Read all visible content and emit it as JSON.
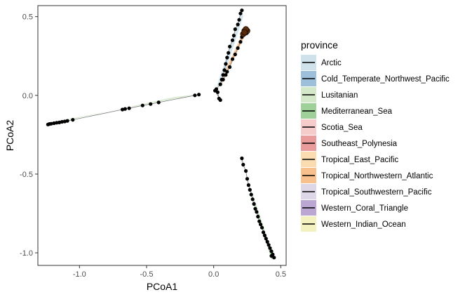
{
  "chart_data": {
    "type": "scatter",
    "xlabel": "PCoA1",
    "ylabel": "PCoA2",
    "xlim": [
      -1.31,
      0.54
    ],
    "ylim": [
      -1.08,
      0.57
    ],
    "x_ticks": [
      -1.0,
      -0.5,
      0.0,
      0.5
    ],
    "x_tick_labels": [
      "-1.0",
      "-0.5",
      "0.0",
      "0.5"
    ],
    "y_ticks": [
      0.5,
      0.0,
      -0.5,
      -1.0
    ],
    "y_tick_labels": [
      "0.5",
      "0.0",
      "-0.5",
      "-1.0"
    ],
    "grid": false,
    "legend": {
      "title": "province",
      "placement": "right",
      "entries": [
        {
          "name": "Arctic",
          "color": "#cfe2eb"
        },
        {
          "name": "Cold_Temperate_Northwest_Pacific",
          "color": "#9ebfda"
        },
        {
          "name": "Lusitanian",
          "color": "#d2e8c8"
        },
        {
          "name": "Mediterranean_Sea",
          "color": "#9fd09a"
        },
        {
          "name": "Scotia_Sea",
          "color": "#f6cccb"
        },
        {
          "name": "Southeast_Polynesia",
          "color": "#ea9b9c"
        },
        {
          "name": "Tropical_East_Pacific",
          "color": "#fbdcb0"
        },
        {
          "name": "Tropical_Northwestern_Atlantic",
          "color": "#f8c08c"
        },
        {
          "name": "Tropical_Southwestern_Pacific",
          "color": "#ded7e8"
        },
        {
          "name": "Western_Coral_Triangle",
          "color": "#bba7d2"
        },
        {
          "name": "Western_Indian_Ocean",
          "color": "#f3f1c0"
        }
      ]
    },
    "series": [
      {
        "province": "Lusitanian",
        "hull": [
          [
            -1.24,
            -0.185
          ],
          [
            -0.3,
            -0.012
          ],
          [
            -0.1,
            0.01
          ],
          [
            -1.24,
            -0.175
          ]
        ],
        "points": [
          [
            -1.235,
            -0.185
          ],
          [
            -1.225,
            -0.182
          ],
          [
            -1.21,
            -0.18
          ],
          [
            -1.19,
            -0.177
          ],
          [
            -1.17,
            -0.174
          ],
          [
            -1.15,
            -0.172
          ],
          [
            -1.13,
            -0.168
          ],
          [
            -1.11,
            -0.166
          ],
          [
            -1.09,
            -0.162
          ],
          [
            -1.05,
            -0.155
          ],
          [
            -0.68,
            -0.09
          ],
          [
            -0.66,
            -0.086
          ],
          [
            -0.63,
            -0.082
          ],
          [
            -0.53,
            -0.064
          ],
          [
            -0.47,
            -0.055
          ],
          [
            -0.41,
            -0.045
          ],
          [
            -0.14,
            0.0
          ],
          [
            -0.11,
            0.005
          ]
        ]
      },
      {
        "province": "Tropical_Northwestern_Atlantic",
        "hull": [
          [
            0.23,
            0.42
          ],
          [
            0.25,
            0.41
          ],
          [
            0.06,
            0.07
          ],
          [
            0.05,
            0.09
          ]
        ],
        "points": [
          [
            0.23,
            0.4
          ],
          [
            0.24,
            0.41
          ],
          [
            0.22,
            0.39
          ],
          [
            0.21,
            0.37
          ],
          [
            0.2,
            0.34
          ],
          [
            0.18,
            0.3
          ],
          [
            0.16,
            0.26
          ],
          [
            0.14,
            0.23
          ],
          [
            0.12,
            0.18
          ],
          [
            0.1,
            0.15
          ],
          [
            0.09,
            0.13
          ],
          [
            0.07,
            0.1
          ]
        ]
      },
      {
        "province": "Arctic",
        "hull": [
          [
            0.21,
            0.54
          ],
          [
            0.22,
            0.5
          ],
          [
            0.06,
            0.08
          ],
          [
            0.02,
            0.05
          ]
        ],
        "points": [
          [
            0.21,
            0.54
          ],
          [
            0.2,
            0.52
          ],
          [
            0.19,
            0.48
          ],
          [
            0.18,
            0.45
          ],
          [
            0.16,
            0.42
          ],
          [
            0.15,
            0.38
          ],
          [
            0.14,
            0.35
          ],
          [
            0.12,
            0.31
          ],
          [
            0.11,
            0.27
          ],
          [
            0.1,
            0.24
          ],
          [
            0.09,
            0.2
          ],
          [
            0.08,
            0.16
          ],
          [
            0.07,
            0.13
          ],
          [
            0.06,
            0.1
          ],
          [
            0.05,
            0.07
          ],
          [
            0.02,
            0.04
          ],
          [
            0.03,
            0.02
          ],
          [
            0.04,
            -0.02
          ],
          [
            0.05,
            -0.03
          ],
          [
            0.01,
            0.03
          ]
        ]
      },
      {
        "province": "Mediterranean_Sea",
        "hull": [
          [
            0.2,
            -0.4
          ],
          [
            0.45,
            -1.04
          ],
          [
            0.43,
            -1.04
          ],
          [
            0.21,
            -0.42
          ]
        ],
        "points": [
          [
            0.21,
            -0.4
          ],
          [
            0.22,
            -0.44
          ],
          [
            0.24,
            -0.48
          ],
          [
            0.25,
            -0.53
          ],
          [
            0.26,
            -0.57
          ],
          [
            0.27,
            -0.6
          ],
          [
            0.28,
            -0.63
          ],
          [
            0.29,
            -0.66
          ],
          [
            0.3,
            -0.69
          ],
          [
            0.31,
            -0.72
          ],
          [
            0.32,
            -0.74
          ],
          [
            0.33,
            -0.77
          ],
          [
            0.34,
            -0.8
          ],
          [
            0.35,
            -0.82
          ],
          [
            0.36,
            -0.84
          ],
          [
            0.37,
            -0.87
          ],
          [
            0.38,
            -0.89
          ],
          [
            0.39,
            -0.91
          ],
          [
            0.4,
            -0.93
          ],
          [
            0.41,
            -0.95
          ],
          [
            0.42,
            -0.97
          ],
          [
            0.43,
            -0.99
          ],
          [
            0.44,
            -1.01
          ],
          [
            0.45,
            -1.03
          ],
          [
            0.43,
            -1.02
          ]
        ]
      }
    ],
    "cluster": {
      "province": "Tropical_Northwestern_Atlantic",
      "points": [
        [
          0.22,
          0.39
        ],
        [
          0.23,
          0.41
        ],
        [
          0.24,
          0.4
        ],
        [
          0.25,
          0.41
        ],
        [
          0.24,
          0.42
        ],
        [
          0.23,
          0.4
        ]
      ]
    }
  }
}
